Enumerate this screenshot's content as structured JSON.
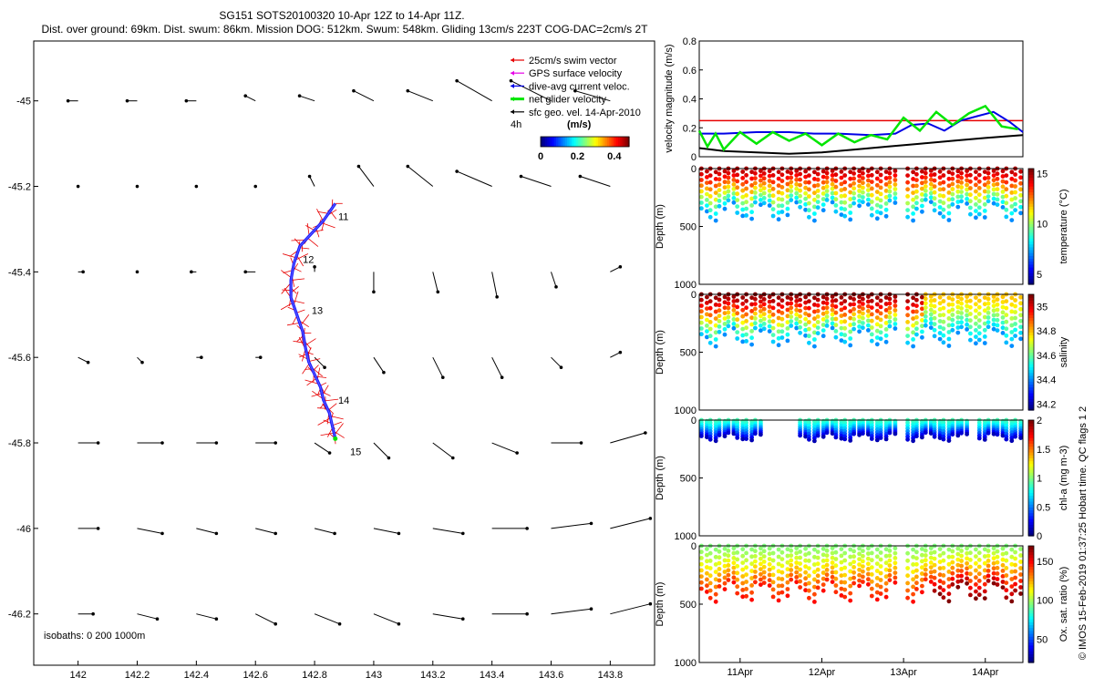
{
  "header": {
    "line1": "SG151 SOTS20100320 10-Apr 12Z to 14-Apr 11Z.",
    "line2": "Dist. over ground: 69km. Dist. swum: 86km. Mission DOG: 512km. Swum: 548km. Gliding 13cm/s 223T COG-DAC=2cm/s 2T"
  },
  "legend": {
    "items": [
      {
        "label": "25cm/s swim vector",
        "color": "#e60000"
      },
      {
        "label": "GPS surface velocity",
        "color": "#e600e6"
      },
      {
        "label": "dive-avg current veloc.",
        "color": "#0000e6"
      },
      {
        "label": "net glider velocity",
        "color": "#00e600"
      },
      {
        "label": "sfc geo. vel. 14-Apr-2010",
        "color": "#000000"
      }
    ],
    "scale_label": "4h",
    "colorbar_unit": "(m/s)",
    "colorbar_ticks": [
      "0",
      "0.2",
      "0.4"
    ]
  },
  "isobaths_label": "isobaths: 0   200  1000m",
  "side_label": "© IMOS 15-Feb-2019 01:37:25 Hobart time. QC flags 1  2",
  "chart_data": [
    {
      "type": "scatter",
      "title": "glider track map",
      "xlabel": "",
      "ylabel": "",
      "xlim": [
        141.85,
        143.95
      ],
      "ylim": [
        -46.32,
        -44.86
      ],
      "x_ticks": [
        "142",
        "142.2",
        "142.4",
        "142.6",
        "142.8",
        "143",
        "143.2",
        "143.4",
        "143.6",
        "143.8"
      ],
      "y_ticks": [
        "-45",
        "-45.2",
        "-45.4",
        "-45.6",
        "-45.8",
        "-46",
        "-46.2"
      ],
      "track": {
        "lon": [
          142.87,
          142.83,
          142.79,
          142.75,
          142.73,
          142.72,
          142.72,
          142.74,
          142.76,
          142.77,
          142.78,
          142.8,
          142.82,
          142.83,
          142.85,
          142.86,
          142.87
        ],
        "lat": [
          -45.24,
          -45.28,
          -45.31,
          -45.34,
          -45.38,
          -45.42,
          -45.46,
          -45.5,
          -45.54,
          -45.58,
          -45.61,
          -45.64,
          -45.67,
          -45.7,
          -45.73,
          -45.76,
          -45.79
        ]
      },
      "day_labels": [
        {
          "label": "11",
          "lon": 142.88,
          "lat": -45.27
        },
        {
          "label": "12",
          "lon": 142.76,
          "lat": -45.37
        },
        {
          "label": "13",
          "lon": 142.79,
          "lat": -45.49
        },
        {
          "label": "14",
          "lon": 142.88,
          "lat": -45.7
        },
        {
          "label": "15",
          "lon": 142.92,
          "lat": -45.82
        }
      ],
      "current_vectors": {
        "lons": [
          142.0,
          142.2,
          142.4,
          142.6,
          142.8,
          143.0,
          143.2,
          143.4,
          143.6,
          143.8
        ],
        "lats": [
          -45.0,
          -45.2,
          -45.4,
          -45.6,
          -45.8,
          -46.0,
          -46.2
        ],
        "u": [
          [
            -0.02,
            -0.02,
            -0.02,
            -0.02,
            -0.03,
            -0.04,
            -0.05,
            -0.07,
            -0.08,
            -0.07
          ],
          [
            0,
            0,
            0,
            0,
            -0.01,
            -0.03,
            -0.05,
            -0.07,
            -0.06,
            -0.06
          ],
          [
            0.01,
            0,
            -0.01,
            -0.02,
            0,
            0,
            0.01,
            0.01,
            0.01,
            0.02
          ],
          [
            0.02,
            0.01,
            0.01,
            0.01,
            0.02,
            0.02,
            0.02,
            0.02,
            0.02,
            0.02
          ],
          [
            0.04,
            0.05,
            0.04,
            0.04,
            0.03,
            0.03,
            0.04,
            0.05,
            0.06,
            0.07
          ],
          [
            0.04,
            0.05,
            0.04,
            0.04,
            0.04,
            0.05,
            0.06,
            0.07,
            0.08,
            0.08
          ],
          [
            0.03,
            0.04,
            0.04,
            0.04,
            0.05,
            0.05,
            0.06,
            0.07,
            0.08,
            0.08
          ]
        ],
        "v": [
          [
            0,
            0,
            0,
            0.01,
            0.01,
            0.02,
            0.02,
            0.04,
            0.04,
            0.02
          ],
          [
            0,
            0,
            0,
            0,
            0.02,
            0.04,
            0.04,
            0.03,
            0.02,
            0.02
          ],
          [
            0,
            0,
            0,
            0,
            0.01,
            -0.04,
            -0.04,
            -0.05,
            -0.03,
            0.01
          ],
          [
            -0.01,
            -0.01,
            0,
            0,
            -0.02,
            -0.03,
            -0.04,
            -0.04,
            -0.02,
            0.01
          ],
          [
            0,
            0,
            0,
            0,
            -0.02,
            -0.03,
            -0.03,
            -0.02,
            0,
            0.02
          ],
          [
            0,
            -0.01,
            -0.01,
            -0.01,
            -0.01,
            -0.01,
            -0.01,
            0,
            0.01,
            0.02
          ],
          [
            0,
            -0.01,
            -0.01,
            -0.02,
            -0.02,
            -0.02,
            -0.01,
            0,
            0.01,
            0.02
          ]
        ]
      }
    },
    {
      "type": "line",
      "ylabel": "velocity magnitude (m/s)",
      "ylim": [
        0,
        0.8
      ],
      "y_ticks": [
        "0",
        "0.2",
        "0.4",
        "0.6",
        "0.8"
      ],
      "x_days": [
        10.5,
        14.46
      ],
      "reference_line": 0.25,
      "series": [
        {
          "name": "dive-avg current veloc.",
          "color": "#0000e6",
          "x": [
            10.5,
            10.8,
            11.2,
            11.6,
            11.9,
            12.2,
            12.6,
            12.9,
            13.1,
            13.3,
            13.5,
            13.7,
            13.9,
            14.1,
            14.3,
            14.46
          ],
          "y": [
            0.16,
            0.16,
            0.17,
            0.17,
            0.16,
            0.16,
            0.15,
            0.16,
            0.22,
            0.23,
            0.18,
            0.25,
            0.28,
            0.31,
            0.24,
            0.17
          ]
        },
        {
          "name": "sfc geo. vel.",
          "color": "#000000",
          "x": [
            10.5,
            10.8,
            11.2,
            11.6,
            12.0,
            12.4,
            12.8,
            13.2,
            13.6,
            14.0,
            14.46
          ],
          "y": [
            0.06,
            0.04,
            0.03,
            0.02,
            0.03,
            0.05,
            0.07,
            0.09,
            0.11,
            0.13,
            0.15
          ]
        },
        {
          "name": "net glider velocity",
          "color": "#00e600",
          "x": [
            10.5,
            10.6,
            10.7,
            10.8,
            11.0,
            11.2,
            11.4,
            11.6,
            11.8,
            12.0,
            12.2,
            12.4,
            12.6,
            12.8,
            13.0,
            13.2,
            13.4,
            13.6,
            13.8,
            14.0,
            14.2,
            14.4
          ],
          "y": [
            0.18,
            0.07,
            0.16,
            0.05,
            0.17,
            0.09,
            0.17,
            0.11,
            0.16,
            0.08,
            0.16,
            0.1,
            0.15,
            0.12,
            0.27,
            0.18,
            0.31,
            0.22,
            0.3,
            0.35,
            0.21,
            0.19
          ]
        }
      ]
    },
    {
      "type": "scatter",
      "ylabel": "Depth (m)",
      "cbar_label": "temperature (°C)",
      "ylim": [
        1000,
        0
      ],
      "y_ticks": [
        "0",
        "500",
        "1000"
      ],
      "cbar_range": [
        4,
        15.5
      ],
      "cbar_ticks": [
        "5",
        "10",
        "15"
      ],
      "colormap": "jet",
      "profile": {
        "surface": 15,
        "bottom": 7,
        "max_depth": 450,
        "gap_day": 12.95
      }
    },
    {
      "type": "scatter",
      "ylabel": "Depth (m)",
      "cbar_label": "salinity",
      "ylim": [
        1000,
        0
      ],
      "y_ticks": [
        "0",
        "500",
        "1000"
      ],
      "cbar_range": [
        34.15,
        35.1
      ],
      "cbar_ticks": [
        "34.2",
        "34.4",
        "34.6",
        "34.8",
        "35"
      ],
      "colormap": "jet",
      "profile": {
        "surface": 35.1,
        "bottom": 34.4,
        "max_depth": 450,
        "gap_day": 12.95
      }
    },
    {
      "type": "scatter",
      "ylabel": "Depth (m)",
      "cbar_label": "chl-a (mg m-3)",
      "ylim": [
        1000,
        0
      ],
      "y_ticks": [
        "0",
        "500",
        "1000"
      ],
      "cbar_range": [
        0,
        2
      ],
      "cbar_ticks": [
        "0",
        "0.5",
        "1",
        "1.5",
        "2"
      ],
      "colormap": "jet",
      "profile": {
        "surface": 0.9,
        "bottom": 0.1,
        "max_depth": 180,
        "gap_day": 12.95
      }
    },
    {
      "type": "scatter",
      "ylabel": "Depth (m)",
      "cbar_label": "Ox. sat. ratio (%)",
      "ylim": [
        1000,
        0
      ],
      "y_ticks": [
        "0",
        "500",
        "1000"
      ],
      "cbar_range": [
        20,
        170
      ],
      "cbar_ticks": [
        "50",
        "100",
        "150"
      ],
      "colormap": "jet",
      "profile": {
        "surface": 95,
        "bottom": 150,
        "max_depth": 480,
        "gap_day": 12.95
      },
      "x_ticks": [
        "11Apr",
        "12Apr",
        "13Apr",
        "14Apr"
      ]
    }
  ]
}
